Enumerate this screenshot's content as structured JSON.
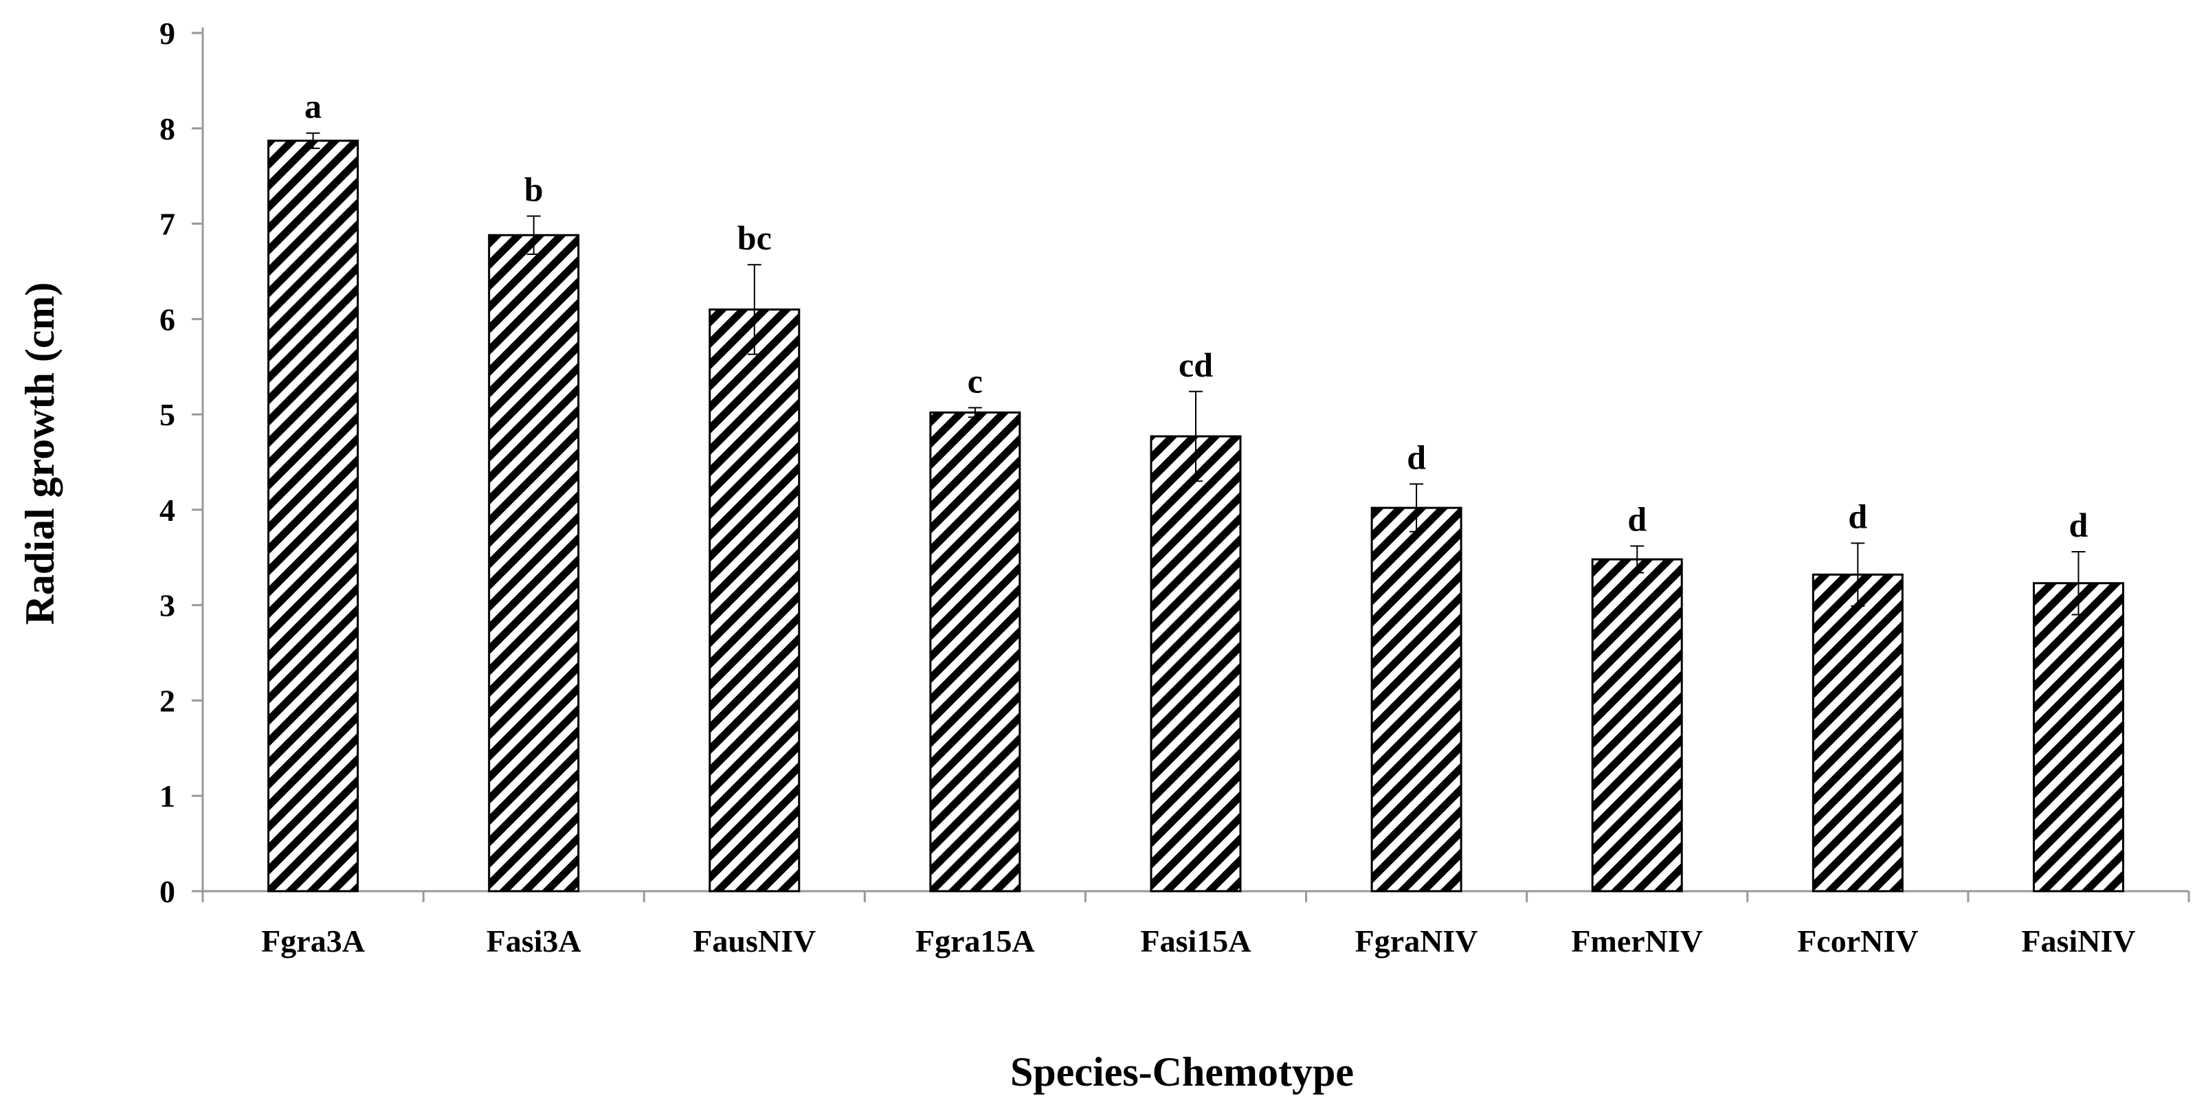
{
  "chart_data": {
    "type": "bar",
    "title": "",
    "xlabel": "Species-Chemotype",
    "ylabel": "Radial growth (cm)",
    "ylim": [
      0,
      9
    ],
    "yticks": [
      "0",
      "1",
      "2",
      "3",
      "4",
      "5",
      "6",
      "7",
      "8",
      "9"
    ],
    "grid": false,
    "fill_pattern": "diagonal-hatch",
    "categories": [
      "Fgra3A",
      "Fasi3A",
      "FausNIV",
      "Fgra15A",
      "Fasi15A",
      "FgraNIV",
      "FmerNIV",
      "FcorNIV",
      "FasiNIV"
    ],
    "values": [
      7.87,
      6.88,
      6.1,
      5.02,
      4.77,
      4.02,
      3.48,
      3.32,
      3.23
    ],
    "errors": [
      0.08,
      0.2,
      0.47,
      0.05,
      0.47,
      0.25,
      0.14,
      0.33,
      0.33
    ],
    "significance": [
      "a",
      "b",
      "bc",
      "c",
      "cd",
      "d",
      "d",
      "d",
      "d"
    ]
  }
}
